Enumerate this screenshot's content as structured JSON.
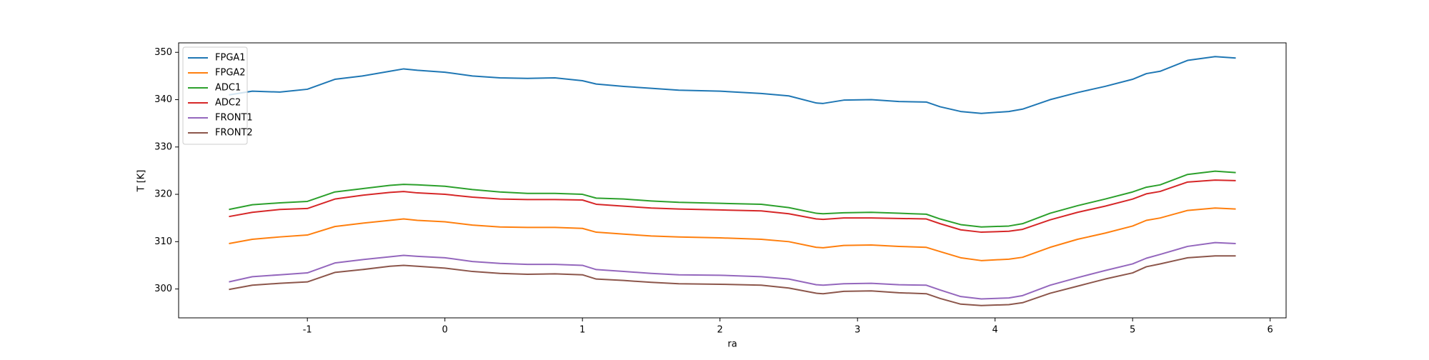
{
  "chart_data": {
    "type": "line",
    "xlabel": "ra",
    "ylabel": "T [K]",
    "x": [
      -1.57,
      -1.4,
      -1.2,
      -1.0,
      -0.8,
      -0.6,
      -0.4,
      -0.3,
      -0.2,
      0,
      0.2,
      0.4,
      0.6,
      0.8,
      1.0,
      1.1,
      1.3,
      1.5,
      1.7,
      2.0,
      2.3,
      2.5,
      2.7,
      2.75,
      2.9,
      3.1,
      3.3,
      3.5,
      3.6,
      3.75,
      3.9,
      4.1,
      4.2,
      4.4,
      4.6,
      4.8,
      5.0,
      5.1,
      5.2,
      5.4,
      5.6,
      5.75
    ],
    "series": [
      {
        "name": "FPGA1",
        "color": "#1f77b4",
        "values": [
          341.0,
          341.8,
          341.6,
          342.2,
          344.3,
          345.0,
          346.0,
          346.5,
          346.2,
          345.8,
          345.0,
          344.6,
          344.5,
          344.6,
          344.0,
          343.3,
          342.8,
          342.4,
          342.0,
          341.8,
          341.3,
          340.8,
          339.3,
          339.2,
          339.9,
          340.0,
          339.6,
          339.5,
          338.5,
          337.5,
          337.1,
          337.5,
          338.0,
          340.0,
          341.5,
          342.8,
          344.3,
          345.5,
          346.0,
          348.3,
          349.1,
          348.8
        ]
      },
      {
        "name": "FPGA2",
        "color": "#ff7f0e",
        "values": [
          309.6,
          310.5,
          311.0,
          311.4,
          313.2,
          313.9,
          314.5,
          314.8,
          314.5,
          314.2,
          313.5,
          313.1,
          313.0,
          313.0,
          312.8,
          312.0,
          311.6,
          311.2,
          311.0,
          310.8,
          310.5,
          310.0,
          308.8,
          308.7,
          309.2,
          309.3,
          309.0,
          308.8,
          307.9,
          306.6,
          306.0,
          306.3,
          306.7,
          308.8,
          310.5,
          311.8,
          313.3,
          314.5,
          315.0,
          316.6,
          317.1,
          316.9
        ]
      },
      {
        "name": "ADC1",
        "color": "#2ca02c",
        "values": [
          316.8,
          317.8,
          318.2,
          318.5,
          320.5,
          321.2,
          321.9,
          322.1,
          322.0,
          321.7,
          321.0,
          320.5,
          320.2,
          320.2,
          320.0,
          319.2,
          319.0,
          318.6,
          318.3,
          318.1,
          317.9,
          317.2,
          316.0,
          315.9,
          316.1,
          316.2,
          316.0,
          315.8,
          314.8,
          313.6,
          313.1,
          313.3,
          313.8,
          316.0,
          317.6,
          319.0,
          320.5,
          321.5,
          322.0,
          324.2,
          324.9,
          324.6
        ]
      },
      {
        "name": "ADC2",
        "color": "#d62728",
        "values": [
          315.3,
          316.2,
          316.8,
          317.0,
          319.0,
          319.8,
          320.4,
          320.6,
          320.3,
          320.0,
          319.4,
          319.0,
          318.9,
          318.9,
          318.8,
          317.9,
          317.5,
          317.1,
          316.9,
          316.7,
          316.5,
          315.9,
          314.8,
          314.7,
          315.0,
          315.0,
          314.9,
          314.8,
          313.8,
          312.5,
          312.0,
          312.2,
          312.6,
          314.6,
          316.2,
          317.5,
          319.0,
          320.1,
          320.6,
          322.6,
          323.0,
          322.9
        ]
      },
      {
        "name": "FRONT1",
        "color": "#9467bd",
        "values": [
          301.5,
          302.6,
          303.0,
          303.4,
          305.5,
          306.2,
          306.8,
          307.1,
          306.9,
          306.6,
          305.8,
          305.4,
          305.2,
          305.2,
          305.0,
          304.1,
          303.7,
          303.3,
          303.0,
          302.9,
          302.6,
          302.1,
          300.9,
          300.8,
          301.1,
          301.2,
          300.9,
          300.8,
          299.8,
          298.4,
          297.9,
          298.1,
          298.6,
          300.8,
          302.4,
          303.9,
          305.3,
          306.5,
          307.3,
          309.0,
          309.8,
          309.6
        ]
      },
      {
        "name": "FRONT2",
        "color": "#8c564b",
        "values": [
          299.9,
          300.8,
          301.2,
          301.5,
          303.5,
          304.1,
          304.8,
          305.0,
          304.8,
          304.4,
          303.7,
          303.3,
          303.1,
          303.2,
          303.0,
          302.1,
          301.8,
          301.4,
          301.1,
          301.0,
          300.8,
          300.2,
          299.1,
          299.0,
          299.5,
          299.6,
          299.2,
          299.0,
          298.0,
          296.8,
          296.5,
          296.7,
          297.1,
          299.1,
          300.6,
          302.1,
          303.4,
          304.7,
          305.3,
          306.6,
          307.0,
          307.0
        ]
      }
    ],
    "xlim": [
      -1.936,
      6.116
    ],
    "xticks": [
      -1,
      0,
      1,
      2,
      3,
      4,
      5,
      6
    ],
    "ylim": [
      293.9,
      352.0
    ],
    "yticks": [
      300,
      310,
      320,
      330,
      340,
      350
    ],
    "legend": "upper left"
  }
}
